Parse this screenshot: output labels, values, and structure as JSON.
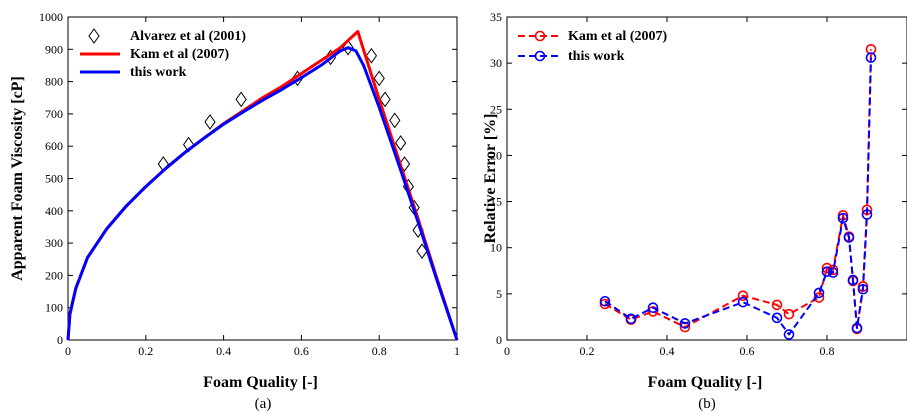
{
  "chart_data": [
    {
      "type": "line",
      "caption": "(a)",
      "xlabel": "Foam Quality [-]",
      "ylabel": "Apparent Foam Viscosity [cP]",
      "xlim": [
        0,
        1
      ],
      "ylim": [
        0,
        1000
      ],
      "xticks": [
        0,
        0.2,
        0.4,
        0.6,
        0.8,
        1
      ],
      "xtick_labels": [
        "0",
        "0.2",
        "0.4",
        "0.6",
        "0.8",
        "1"
      ],
      "yticks": [
        0,
        100,
        200,
        300,
        400,
        500,
        600,
        700,
        800,
        900,
        1000
      ],
      "ytick_labels": [
        "0",
        "100",
        "200",
        "300",
        "400",
        "500",
        "600",
        "700",
        "800",
        "900",
        "1000"
      ],
      "grid": false,
      "legend_position": "top-left",
      "series": [
        {
          "name": "Alvarez et al (2001)",
          "style": "diamond-markers",
          "color": "#000000",
          "x": [
            0.245,
            0.31,
            0.365,
            0.445,
            0.59,
            0.675,
            0.72,
            0.78,
            0.8,
            0.815,
            0.84,
            0.855,
            0.865,
            0.875,
            0.89,
            0.9,
            0.91
          ],
          "y": [
            545,
            605,
            675,
            745,
            810,
            875,
            905,
            880,
            810,
            745,
            680,
            610,
            545,
            475,
            410,
            340,
            275
          ]
        },
        {
          "name": "Kam et al (2007)",
          "style": "solid-line",
          "color": "#ff0000",
          "x": [
            0,
            0.005,
            0.02,
            0.05,
            0.1,
            0.15,
            0.2,
            0.25,
            0.3,
            0.35,
            0.4,
            0.45,
            0.5,
            0.55,
            0.6,
            0.65,
            0.7,
            0.745,
            0.8,
            0.85,
            0.9,
            0.95,
            1.0
          ],
          "y": [
            0,
            80,
            160,
            255,
            345,
            415,
            475,
            530,
            580,
            625,
            670,
            710,
            750,
            785,
            825,
            865,
            905,
            955,
            745,
            560,
            375,
            185,
            0
          ]
        },
        {
          "name": "this work",
          "style": "solid-line",
          "color": "#0000ff",
          "x": [
            0,
            0.005,
            0.02,
            0.05,
            0.1,
            0.15,
            0.2,
            0.25,
            0.3,
            0.35,
            0.4,
            0.45,
            0.5,
            0.55,
            0.6,
            0.65,
            0.7,
            0.72,
            0.74,
            0.76,
            0.8,
            0.85,
            0.9,
            0.95,
            1.0
          ],
          "y": [
            0,
            80,
            160,
            255,
            345,
            415,
            475,
            530,
            580,
            625,
            668,
            706,
            742,
            776,
            812,
            850,
            895,
            905,
            895,
            850,
            720,
            545,
            365,
            180,
            0
          ]
        }
      ]
    },
    {
      "type": "line",
      "caption": "(b)",
      "xlabel": "Foam Quality [-]",
      "ylabel": "Relative Error [%]",
      "xlim": [
        0,
        1
      ],
      "ylim": [
        0,
        35
      ],
      "xticks": [
        0,
        0.2,
        0.4,
        0.6,
        0.8
      ],
      "xtick_labels": [
        "0",
        "0.2",
        "0.4",
        "0.6",
        "0.8"
      ],
      "yticks": [
        0,
        5,
        10,
        15,
        20,
        25,
        30,
        35
      ],
      "ytick_labels": [
        "0",
        "5",
        "10",
        "15",
        "20",
        "25",
        "30",
        "35"
      ],
      "grid": false,
      "legend_position": "top-left",
      "series": [
        {
          "name": "Kam et al (2007)",
          "style": "dashed-line-circle-markers",
          "color": "#ff0000",
          "x": [
            0.245,
            0.31,
            0.365,
            0.445,
            0.59,
            0.675,
            0.705,
            0.78,
            0.8,
            0.815,
            0.84,
            0.855,
            0.865,
            0.875,
            0.89,
            0.9,
            0.91
          ],
          "y": [
            3.9,
            2.2,
            3.1,
            1.4,
            4.8,
            3.8,
            2.8,
            4.6,
            7.8,
            7.6,
            13.5,
            11.2,
            6.4,
            1.2,
            5.8,
            14.1,
            31.5
          ]
        },
        {
          "name": "this work",
          "style": "dashed-line-circle-markers",
          "color": "#0000ff",
          "x": [
            0.245,
            0.31,
            0.365,
            0.445,
            0.59,
            0.675,
            0.705,
            0.78,
            0.8,
            0.815,
            0.84,
            0.855,
            0.865,
            0.875,
            0.89,
            0.9,
            0.91
          ],
          "y": [
            4.2,
            2.3,
            3.5,
            1.8,
            4.1,
            2.4,
            0.6,
            5.1,
            7.4,
            7.3,
            13.2,
            11.1,
            6.5,
            1.3,
            5.5,
            13.6,
            30.6
          ]
        }
      ]
    }
  ]
}
